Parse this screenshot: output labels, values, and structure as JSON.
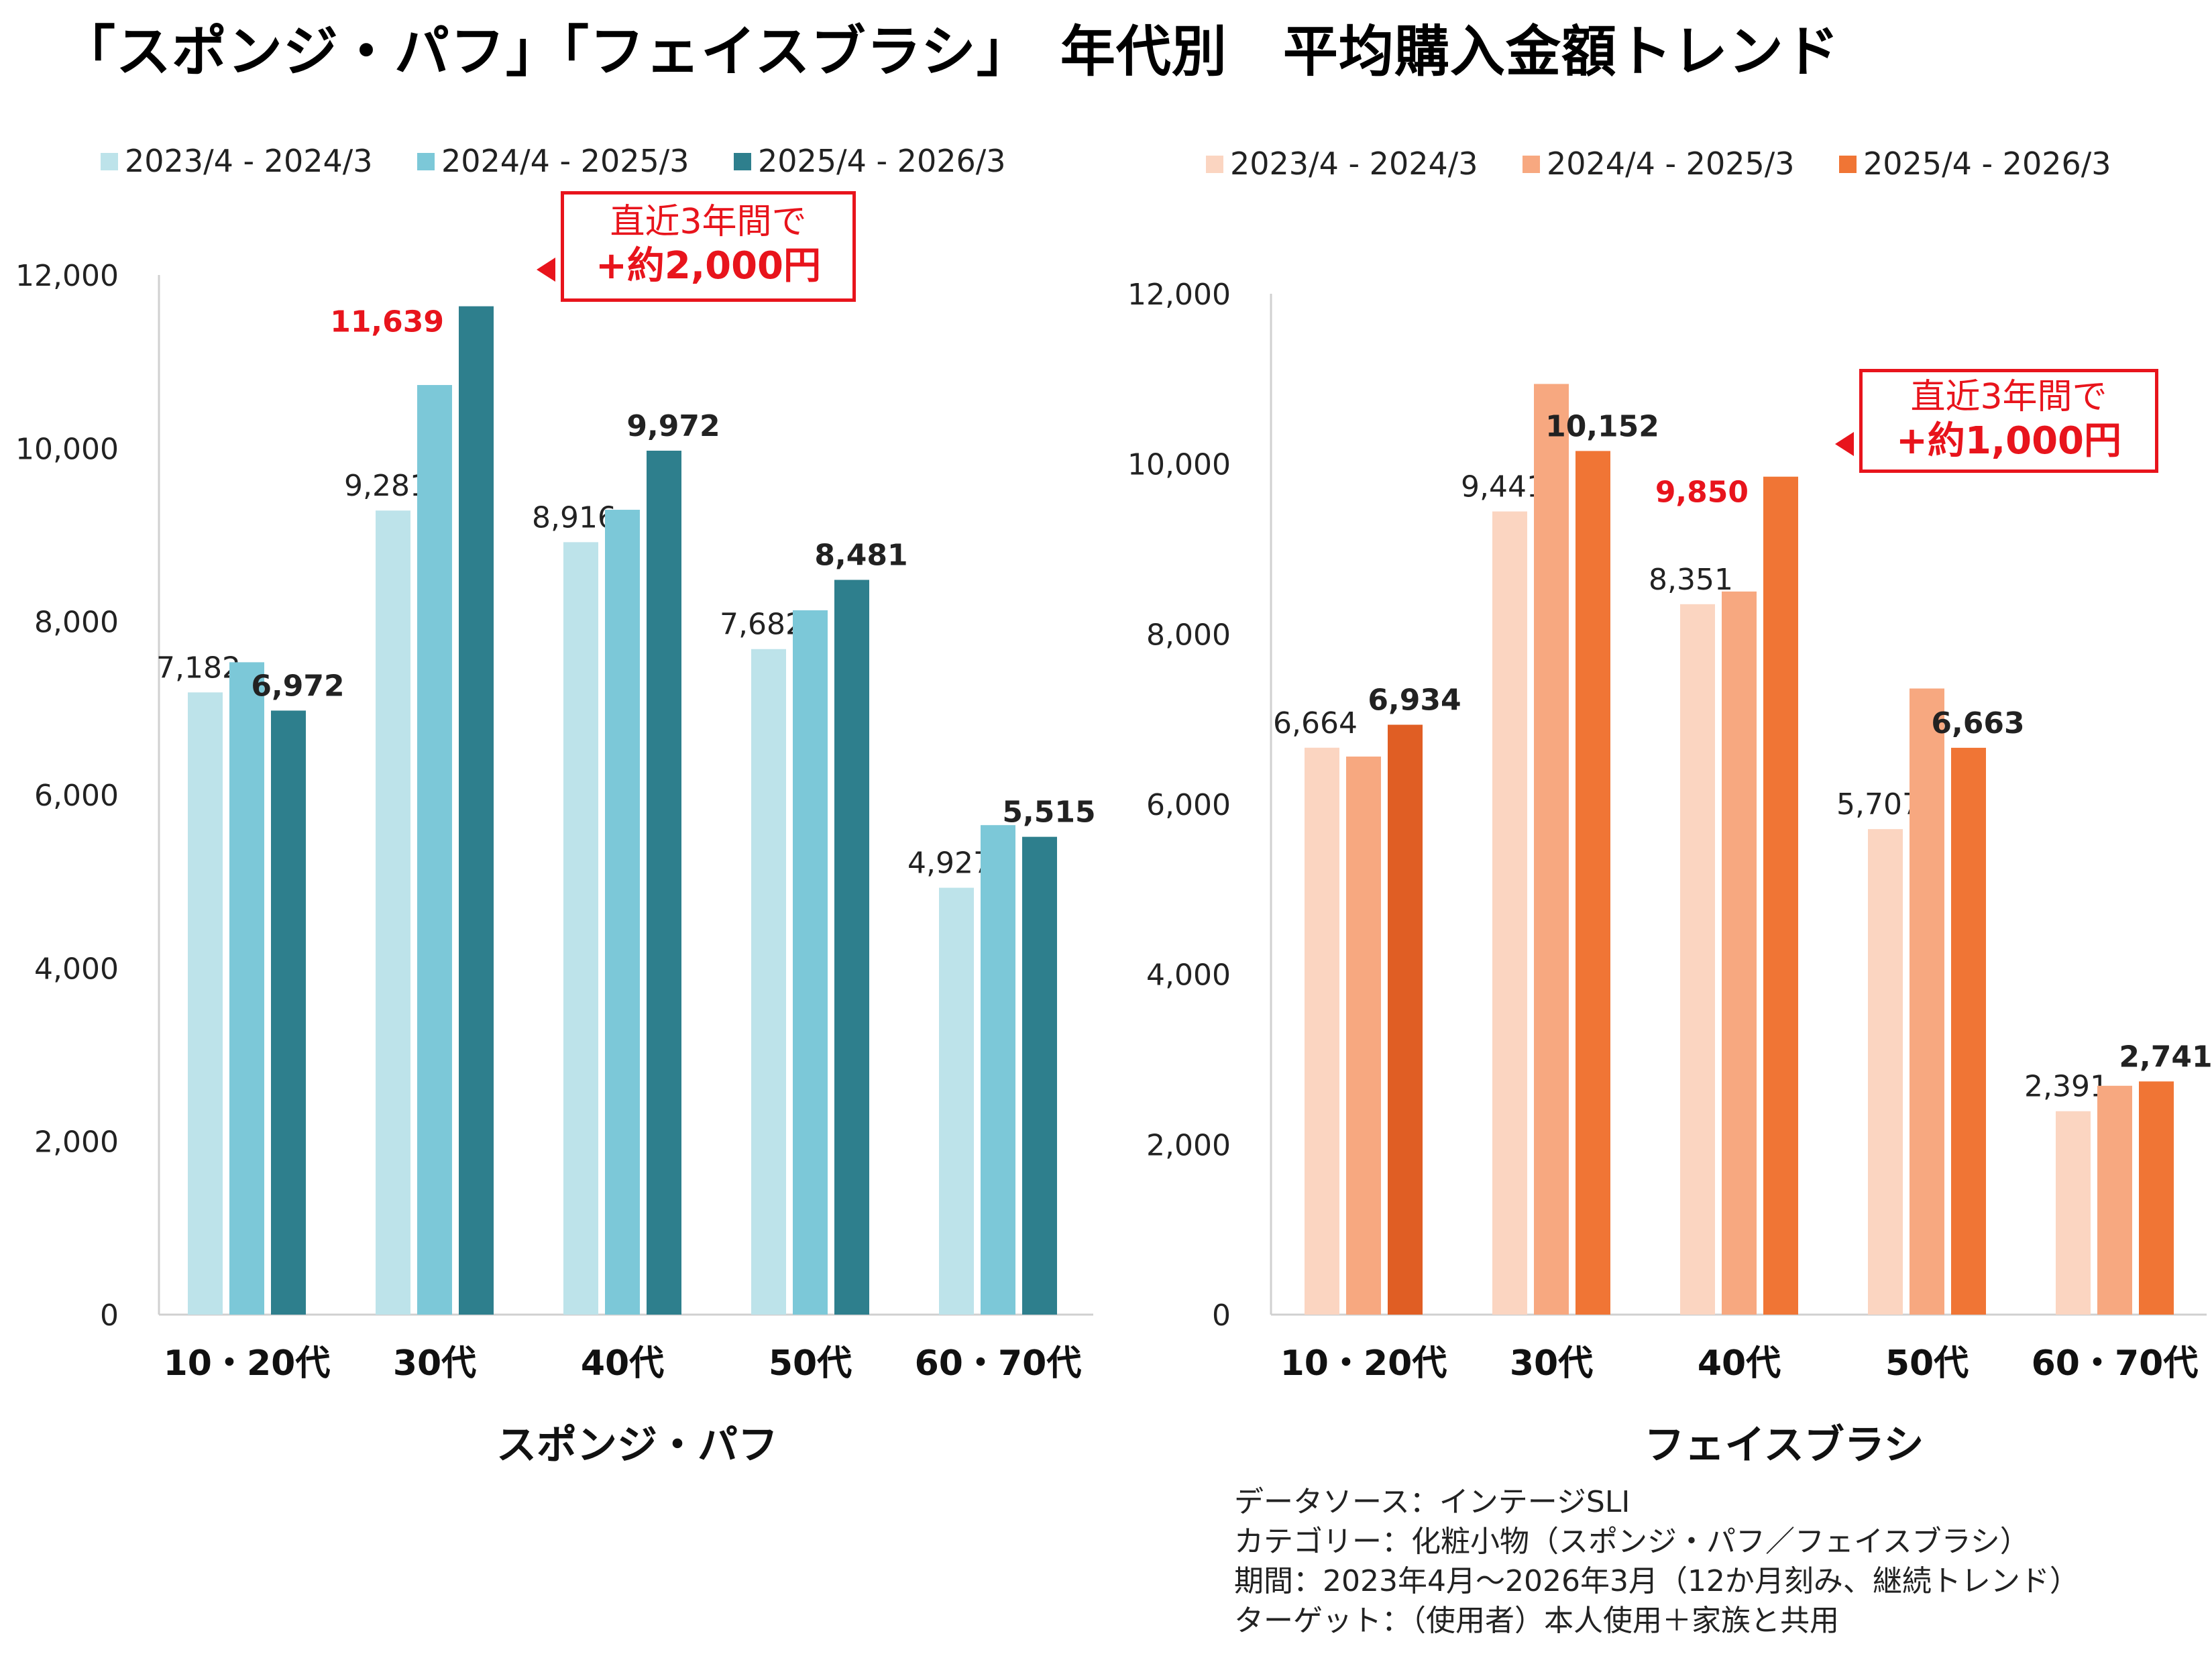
{
  "title": "「スポンジ・パフ」「フェイスブラシ」　年代別　平均購入金額トレンド",
  "chart_data": [
    {
      "type": "bar",
      "title": "スポンジ・パフ",
      "categories": [
        "10・20代",
        "30代",
        "40代",
        "50代",
        "60・70代"
      ],
      "ylim": [
        0,
        12000
      ],
      "yticks": [
        "0",
        "2,000",
        "4,000",
        "6,000",
        "8,000",
        "10,000",
        "12,000"
      ],
      "legend_position": "top",
      "colors": [
        "#bde3ea",
        "#7cc8d8",
        "#2e7f8d"
      ],
      "series": [
        {
          "name": "2023/4 - 2024/3",
          "values": [
            7182,
            9281,
            8916,
            7682,
            4927
          ],
          "labels": [
            "7,182",
            "9,281",
            "8,916",
            "7,682",
            "4,927"
          ]
        },
        {
          "name": "2024/4 - 2025/3",
          "values": [
            7530,
            10730,
            9290,
            8130,
            5650
          ],
          "labels": [
            "",
            "",
            "",
            "",
            ""
          ]
        },
        {
          "name": "2025/4 - 2026/3",
          "values": [
            6972,
            11639,
            9972,
            8481,
            5515
          ],
          "labels": [
            "6,972",
            "11,639",
            "9,972",
            "8,481",
            "5,515"
          ]
        }
      ],
      "highlight": {
        "category": 1,
        "series": 2
      },
      "callout": {
        "line1": "直近3年間で",
        "line2": "+約2,000円"
      }
    },
    {
      "type": "bar",
      "title": "フェイスブラシ",
      "categories": [
        "10・20代",
        "30代",
        "40代",
        "50代",
        "60・70代"
      ],
      "ylim": [
        0,
        12000
      ],
      "yticks": [
        "0",
        "2,000",
        "4,000",
        "6,000",
        "8,000",
        "10,000",
        "12,000"
      ],
      "legend_position": "top",
      "colors": [
        "#fbd5c1",
        "#f7a880",
        "#f07535"
      ],
      "series": [
        {
          "name": "2023/4 - 2024/3",
          "values": [
            6664,
            9441,
            8351,
            5707,
            2391
          ],
          "labels": [
            "6,664",
            "9,441",
            "8,351",
            "5,707",
            "2,391"
          ]
        },
        {
          "name": "2024/4 - 2025/3",
          "values": [
            6560,
            10940,
            8500,
            7360,
            2690
          ],
          "labels": [
            "",
            "",
            "",
            "",
            ""
          ]
        },
        {
          "name": "2025/4 - 2026/3",
          "values": [
            6934,
            10152,
            9850,
            6663,
            2741
          ],
          "labels": [
            "6,934",
            "10,152",
            "9,850",
            "6,663",
            "2,741"
          ]
        }
      ],
      "highlight": {
        "category": 2,
        "series": 2
      },
      "callout": {
        "line1": "直近3年間で",
        "line2": "+約1,000円"
      }
    }
  ],
  "source_note": [
    "データソース：インテージSLI",
    "カテゴリー：化粧小物（スポンジ・パフ／フェイスブラシ）",
    "期間：2023年4月～2026年3月（12か月刻み、継続トレンド）",
    "ターゲット：（使用者）本人使用＋家族と共用"
  ]
}
